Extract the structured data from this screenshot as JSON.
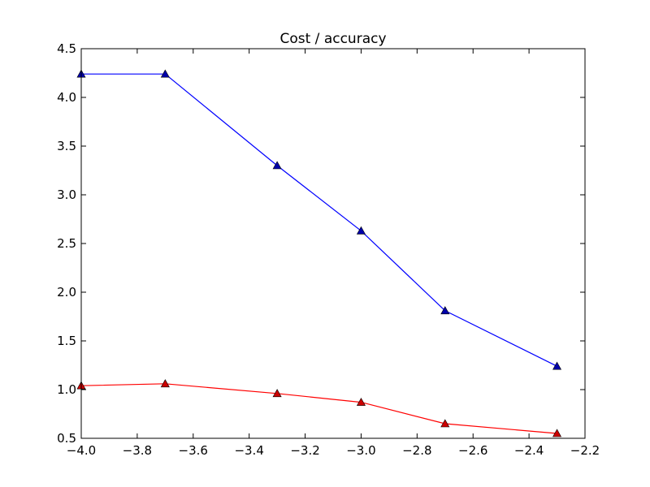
{
  "chart_data": {
    "type": "line",
    "title": "Cost / accuracy",
    "xlabel": "",
    "ylabel": "",
    "xlim": [
      -4.0,
      -2.2
    ],
    "ylim": [
      0.5,
      4.5
    ],
    "xticks": [
      -4.0,
      -3.8,
      -3.6,
      -3.4,
      -3.2,
      -3.0,
      -2.8,
      -2.6,
      -2.4,
      -2.2
    ],
    "yticks": [
      0.5,
      1.0,
      1.5,
      2.0,
      2.5,
      3.0,
      3.5,
      4.0,
      4.5
    ],
    "xtick_labels": [
      "−4.0",
      "−3.8",
      "−3.6",
      "−3.4",
      "−3.2",
      "−3.0",
      "−2.8",
      "−2.6",
      "−2.4",
      "−2.2"
    ],
    "ytick_labels": [
      "0.5",
      "1.0",
      "1.5",
      "2.0",
      "2.5",
      "3.0",
      "3.5",
      "4.0",
      "4.5"
    ],
    "grid": false,
    "legend": "none",
    "marker": "triangle",
    "series": [
      {
        "color": "#0000ff",
        "marker_color": "#0000aa",
        "x": [
          -4.0,
          -3.7,
          -3.3,
          -3.0,
          -2.7,
          -2.3
        ],
        "y": [
          4.24,
          4.24,
          3.3,
          2.63,
          1.81,
          1.24
        ]
      },
      {
        "color": "#ff0000",
        "marker_color": "#cc0000",
        "x": [
          -4.0,
          -3.7,
          -3.3,
          -3.0,
          -2.7,
          -2.3
        ],
        "y": [
          1.04,
          1.06,
          0.96,
          0.87,
          0.65,
          0.55
        ]
      }
    ]
  }
}
